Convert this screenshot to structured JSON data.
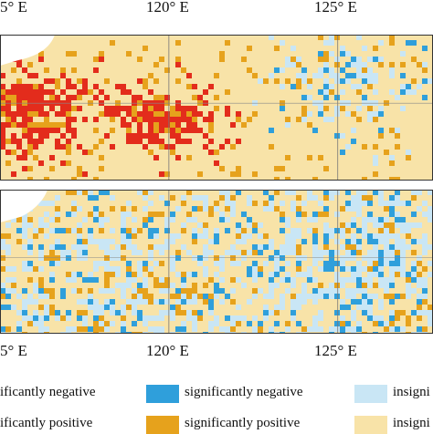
{
  "longitude_labels": [
    "5° E",
    "120° E",
    "125° E"
  ],
  "panels": [
    "top",
    "bottom"
  ],
  "colors": {
    "significantly_negative": "#2f9fdb",
    "insignificantly_negative": "#c9e6f5",
    "significantly_positive": "#e6a21c",
    "insignificantly_positive": "#f8e3a8",
    "strong_positive": "#e32c1c",
    "land_mask": "#ffffff",
    "frame": "#333333"
  },
  "legend": [
    {
      "label": "ificantly negative",
      "color": "#2f9fdb"
    },
    {
      "label": "significantly negative",
      "color": "#2f9fdb"
    },
    {
      "label": "insigni",
      "color": "#c9e6f5"
    },
    {
      "label": "ificantly positive",
      "color": "#e6a21c"
    },
    {
      "label": "significantly positive",
      "color": "#e6a21c"
    },
    {
      "label": "insigni",
      "color": "#f8e3a8"
    }
  ]
}
